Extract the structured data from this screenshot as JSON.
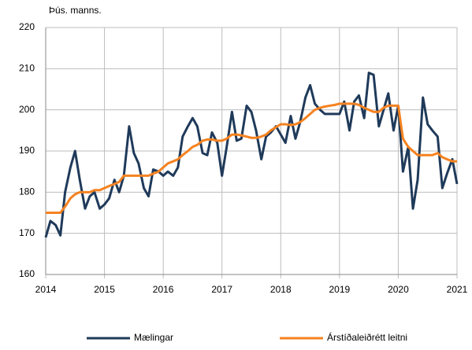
{
  "chart_data": {
    "type": "line",
    "y_axis_label": "Þús. manns.",
    "x": [
      2014,
      2014.08,
      2014.17,
      2014.25,
      2014.33,
      2014.42,
      2014.5,
      2014.58,
      2014.67,
      2014.75,
      2014.83,
      2014.92,
      2015,
      2015.08,
      2015.17,
      2015.25,
      2015.33,
      2015.42,
      2015.5,
      2015.58,
      2015.67,
      2015.75,
      2015.83,
      2015.92,
      2016,
      2016.08,
      2016.17,
      2016.25,
      2016.33,
      2016.42,
      2016.5,
      2016.58,
      2016.67,
      2016.75,
      2016.83,
      2016.92,
      2017,
      2017.08,
      2017.17,
      2017.25,
      2017.33,
      2017.42,
      2017.5,
      2017.58,
      2017.67,
      2017.75,
      2017.83,
      2017.92,
      2018,
      2018.08,
      2018.17,
      2018.25,
      2018.33,
      2018.42,
      2018.5,
      2018.58,
      2018.67,
      2018.75,
      2018.83,
      2018.92,
      2019,
      2019.08,
      2019.17,
      2019.25,
      2019.33,
      2019.42,
      2019.5,
      2019.58,
      2019.67,
      2019.75,
      2019.83,
      2019.92,
      2020,
      2020.08,
      2020.17,
      2020.25,
      2020.33,
      2020.42,
      2020.5,
      2020.58,
      2020.67,
      2020.75,
      2020.83,
      2020.92,
      2021
    ],
    "series": [
      {
        "name": "Mælingar",
        "color": "#1f3a5a",
        "values": [
          169,
          173,
          172,
          169.5,
          180,
          186,
          190,
          183,
          176,
          179,
          180,
          176,
          177,
          178.5,
          183,
          180,
          184,
          196,
          189.5,
          187,
          181,
          179,
          185.5,
          185,
          184,
          185,
          184,
          186,
          193.5,
          196,
          198,
          196,
          189.5,
          189,
          194.5,
          192,
          184,
          191,
          199.5,
          192.5,
          193,
          201,
          199.5,
          195,
          188,
          193.5,
          194.5,
          196,
          194,
          192,
          198.5,
          193,
          197,
          203,
          206,
          201.5,
          200,
          199,
          199,
          199,
          199,
          202,
          195,
          202,
          203.5,
          198,
          209,
          208.5,
          196,
          200,
          204,
          195,
          201,
          185,
          191,
          176,
          183,
          203,
          196.5,
          195,
          193.5,
          181,
          184.5,
          188,
          182
        ]
      },
      {
        "name": "Árstíðaleiðrétt leitni",
        "color": "#f58220",
        "values": [
          175,
          175,
          175,
          175,
          176.5,
          178.5,
          179.5,
          180,
          180,
          180,
          180.5,
          180.5,
          181,
          181.5,
          182,
          182.5,
          184,
          184,
          184,
          184,
          184,
          184,
          184.5,
          185,
          186,
          187,
          187.5,
          188,
          189,
          190,
          191,
          191.5,
          192.5,
          192.8,
          192.8,
          192.5,
          192.5,
          193,
          194,
          194,
          193.8,
          193.5,
          193.2,
          193.2,
          193.5,
          194,
          195,
          195.8,
          196.5,
          196.5,
          196.3,
          196.5,
          197,
          198,
          199,
          200,
          200.5,
          200.8,
          201,
          201.2,
          201.5,
          201.5,
          201.5,
          201.5,
          201.2,
          200.5,
          200,
          199.5,
          199.5,
          200.5,
          201,
          201,
          201,
          193,
          191,
          190,
          189,
          189,
          189,
          189,
          189.5,
          188.5,
          188,
          187.5,
          187.5
        ]
      }
    ],
    "xlim": [
      2014,
      2021
    ],
    "xticks": [
      2014,
      2015,
      2016,
      2017,
      2018,
      2019,
      2020,
      2021
    ],
    "ylim": [
      160,
      220
    ],
    "yticks": [
      160,
      170,
      180,
      190,
      200,
      210,
      220
    ],
    "grid": true,
    "legend": "bottom"
  }
}
